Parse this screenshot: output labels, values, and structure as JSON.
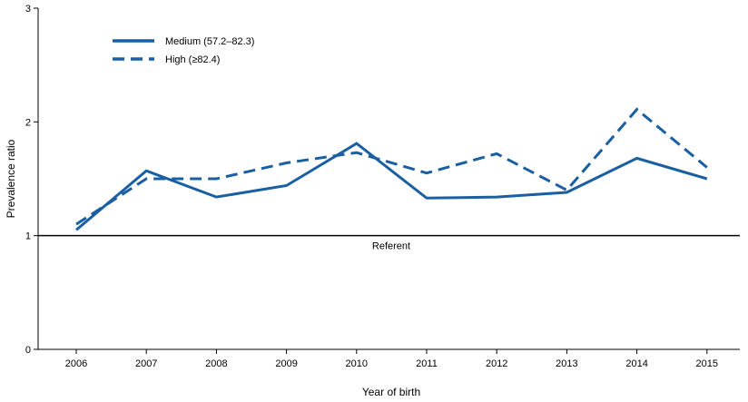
{
  "chart_data": {
    "type": "line",
    "title": "",
    "xlabel": "Year of birth",
    "ylabel": "Prevalence ratio",
    "categories": [
      "2006",
      "2007",
      "2008",
      "2009",
      "2010",
      "2011",
      "2012",
      "2013",
      "2014",
      "2015"
    ],
    "yticks": [
      "0",
      "1",
      "2",
      "3"
    ],
    "ylim": [
      0,
      3
    ],
    "grid": false,
    "legend_position": "top-left",
    "reference_line": {
      "value": 1,
      "label": "Referent"
    },
    "series": [
      {
        "name": "Medium (57.2–82.3)",
        "style": "solid",
        "color": "#1b5fa3",
        "values": [
          1.05,
          1.57,
          1.34,
          1.44,
          1.81,
          1.33,
          1.34,
          1.38,
          1.68,
          1.5
        ]
      },
      {
        "name": "High (≥82.4)",
        "style": "dashed",
        "color": "#1b5fa3",
        "values": [
          1.1,
          1.5,
          1.5,
          1.64,
          1.73,
          1.55,
          1.72,
          1.4,
          2.11,
          1.6
        ]
      }
    ]
  }
}
